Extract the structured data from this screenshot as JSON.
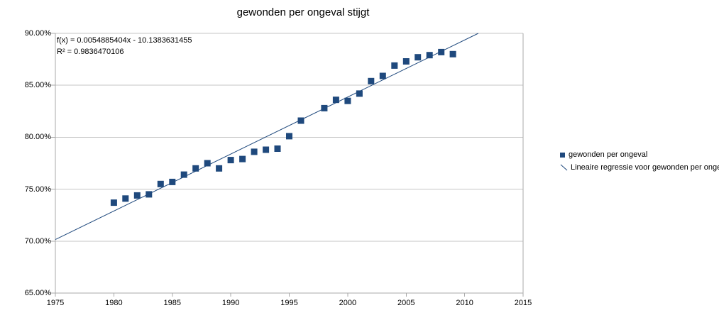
{
  "title": "gewonden per ongeval stijgt",
  "equation": {
    "line1": "f(x) = 0.0054885404x - 10.1383631455",
    "line2": "R² = 0.9836470106"
  },
  "legend": {
    "series_label": "gewonden per ongeval",
    "regression_label": "Lineaire regressie voor gewonden per ongeval"
  },
  "colors": {
    "marker": "#1F497D",
    "regression_line": "#1F497D",
    "gridline": "#C6C6C6",
    "axis": "#A9A9A9",
    "text": "#000000",
    "background": "#FFFFFF"
  },
  "chart_data": {
    "type": "scatter",
    "title": "gewonden per ongeval stijgt",
    "xlabel": "",
    "ylabel": "",
    "xlim": [
      1975,
      2015
    ],
    "ylim": [
      0.65,
      0.9
    ],
    "grid": "horizontal-only",
    "legend_position": "right",
    "x_axis": {
      "ticks": [
        {
          "v": 1975,
          "label": "1975"
        },
        {
          "v": 1980,
          "label": "1980"
        },
        {
          "v": 1985,
          "label": "1985"
        },
        {
          "v": 1990,
          "label": "1990"
        },
        {
          "v": 1995,
          "label": "1995"
        },
        {
          "v": 2000,
          "label": "2000"
        },
        {
          "v": 2005,
          "label": "2005"
        },
        {
          "v": 2010,
          "label": "2010"
        },
        {
          "v": 2015,
          "label": "2015"
        }
      ]
    },
    "y_axis": {
      "ticks": [
        {
          "v": 0.9,
          "label": "90.00%"
        },
        {
          "v": 0.85,
          "label": "85.00%"
        },
        {
          "v": 0.8,
          "label": "80.00%"
        },
        {
          "v": 0.75,
          "label": "75.00%"
        },
        {
          "v": 0.7,
          "label": "70.00%"
        },
        {
          "v": 0.65,
          "label": "65.00%"
        }
      ]
    },
    "series": [
      {
        "name": "gewonden per ongeval",
        "marker": "square",
        "points": [
          [
            1980,
            0.737
          ],
          [
            1981,
            0.741
          ],
          [
            1982,
            0.744
          ],
          [
            1983,
            0.745
          ],
          [
            1984,
            0.755
          ],
          [
            1985,
            0.757
          ],
          [
            1986,
            0.764
          ],
          [
            1987,
            0.77
          ],
          [
            1988,
            0.775
          ],
          [
            1989,
            0.77
          ],
          [
            1990,
            0.778
          ],
          [
            1991,
            0.779
          ],
          [
            1992,
            0.786
          ],
          [
            1993,
            0.788
          ],
          [
            1994,
            0.789
          ],
          [
            1995,
            0.801
          ],
          [
            1996,
            0.816
          ],
          [
            1998,
            0.828
          ],
          [
            1999,
            0.836
          ],
          [
            2000,
            0.835
          ],
          [
            2001,
            0.842
          ],
          [
            2002,
            0.854
          ],
          [
            2003,
            0.859
          ],
          [
            2004,
            0.869
          ],
          [
            2005,
            0.873
          ],
          [
            2006,
            0.877
          ],
          [
            2007,
            0.879
          ],
          [
            2008,
            0.882
          ],
          [
            2009,
            0.88
          ]
        ]
      }
    ],
    "regression": {
      "name": "Lineaire regressie voor gewonden per ongeval",
      "slope": 0.0054885404,
      "intercept": -10.1383631455,
      "r_squared": 0.9836470106
    }
  }
}
